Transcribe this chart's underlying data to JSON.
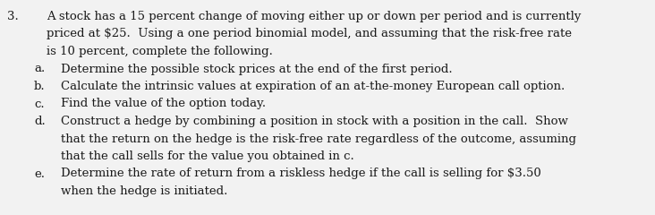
{
  "number": "3.",
  "background_color": "#f2f2f2",
  "text_color": "#1a1a1a",
  "font_size": 9.5,
  "intro_lines": [
    "A stock has a 15 percent change of moving either up or down per period and is currently",
    "priced at $25.  Using a one period binomial model, and assuming that the risk-free rate",
    "is 10 percent, complete the following."
  ],
  "items": [
    {
      "label": "a.",
      "lines": [
        "Determine the possible stock prices at the end of the first period."
      ]
    },
    {
      "label": "b.",
      "lines": [
        "Calculate the intrinsic values at expiration of an at-the-money European call option."
      ]
    },
    {
      "label": "c.",
      "lines": [
        "Find the value of the option today."
      ]
    },
    {
      "label": "d.",
      "lines": [
        "Construct a hedge by combining a position in stock with a position in the call.  Show",
        "that the return on the hedge is the risk-free rate regardless of the outcome, assuming",
        "that the call sells for the value you obtained in c."
      ]
    },
    {
      "label": "e.",
      "lines": [
        "Determine the rate of return from a riskless hedge if the call is selling for $3.50",
        "when the hedge is initiated."
      ]
    }
  ]
}
